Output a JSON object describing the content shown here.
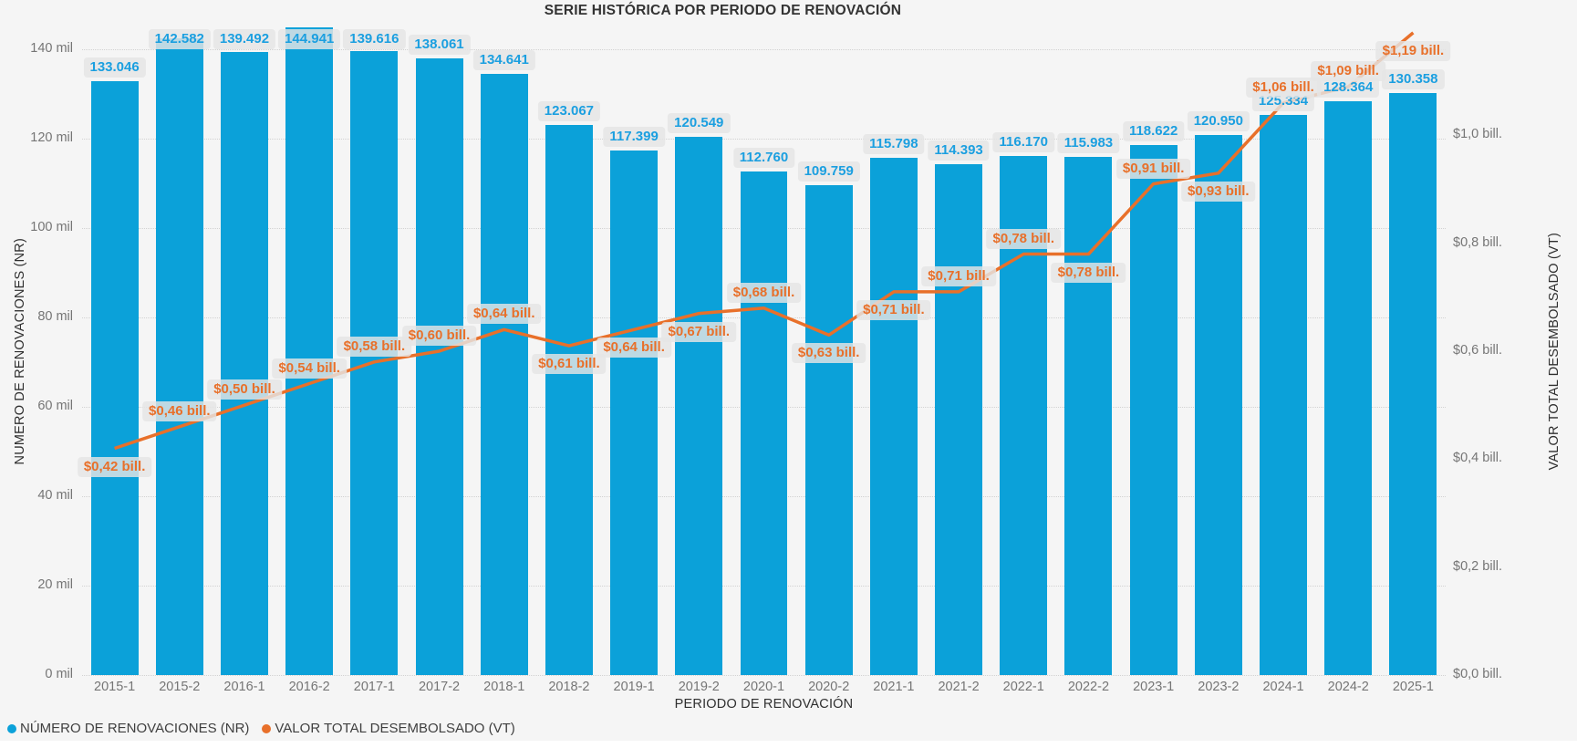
{
  "chart_data": {
    "type": "combo-bar-line",
    "title": "SERIE HISTÓRICA POR PERIODO DE RENOVACIÓN",
    "x_title": "PERIODO DE RENOVACIÓN",
    "y_left_title": "NUMERO DE RENOVACIONES (NR)",
    "y_right_title": "VALOR TOTAL DESEMBOLSADO (VT)",
    "categories": [
      "2015-1",
      "2015-2",
      "2016-1",
      "2016-2",
      "2017-1",
      "2017-2",
      "2018-1",
      "2018-2",
      "2019-1",
      "2019-2",
      "2020-1",
      "2020-2",
      "2021-1",
      "2021-2",
      "2022-1",
      "2022-2",
      "2023-1",
      "2023-2",
      "2024-1",
      "2024-2",
      "2025-1"
    ],
    "series": [
      {
        "name": "NÚMERO DE RENOVACIONES (NR)",
        "type": "bar",
        "color": "#0BA1D9",
        "values": [
          133046,
          142582,
          139492,
          144941,
          139616,
          138061,
          134641,
          123067,
          117399,
          120549,
          112760,
          109759,
          115798,
          114393,
          116170,
          115983,
          118622,
          120950,
          125334,
          128364,
          130358
        ],
        "labels": [
          "133.046",
          "142.582",
          "139.492",
          "144.941",
          "139.616",
          "138.061",
          "134.641",
          "123.067",
          "117.399",
          "120.549",
          "112.760",
          "109.759",
          "115.798",
          "114.393",
          "116.170",
          "115.983",
          "118.622",
          "120.950",
          "125.334",
          "128.364",
          "130.358"
        ]
      },
      {
        "name": "VALOR TOTAL DESEMBOLSADO (VT)",
        "type": "line",
        "color": "#E8702A",
        "values": [
          0.42,
          0.46,
          0.5,
          0.54,
          0.58,
          0.6,
          0.64,
          0.61,
          0.64,
          0.67,
          0.68,
          0.63,
          0.71,
          0.71,
          0.78,
          0.78,
          0.91,
          0.93,
          1.06,
          1.09,
          1.19
        ],
        "labels": [
          "$0,42 bill.",
          "$0,46 bill.",
          "$0,50 bill.",
          "$0,54 bill.",
          "$0,58 bill.",
          "$0,60 bill.",
          "$0,64 bill.",
          "$0,61 bill.",
          "$0,64 bill.",
          "$0,67 bill.",
          "$0,68 bill.",
          "$0,63 bill.",
          "$0,71 bill.",
          "$0,71 bill.",
          "$0,78 bill.",
          "$0,78 bill.",
          "$0,91 bill.",
          "$0,93 bill.",
          "$1,06 bill.",
          "$1,09 bill.",
          "$1,19 bill."
        ],
        "label_positions": [
          "below",
          "above",
          "above",
          "above",
          "above",
          "above",
          "above",
          "below",
          "below",
          "below",
          "above",
          "below",
          "below",
          "above",
          "above",
          "below",
          "above",
          "below",
          "above",
          "above",
          "below"
        ]
      }
    ],
    "y_left": {
      "ticks": [
        "0 mil",
        "20 mil",
        "40 mil",
        "60 mil",
        "80 mil",
        "100 mil",
        "120 mil",
        "140 mil"
      ],
      "values": [
        0,
        20000,
        40000,
        60000,
        80000,
        100000,
        120000,
        140000
      ],
      "max": 145000
    },
    "y_right": {
      "ticks": [
        "$0,0 bill.",
        "$0,2 bill.",
        "$0,4 bill.",
        "$0,6 bill.",
        "$0,8 bill.",
        "$1,0 bill."
      ],
      "values": [
        0,
        0.2,
        0.4,
        0.6,
        0.8,
        1.0
      ],
      "max": 1.2
    },
    "grid": true,
    "legend_position": "bottom-left",
    "colors": {
      "background": "#F5F5F5",
      "bar": "#0BA1D9",
      "line": "#E8702A",
      "bar_label_text": "#1B9FE0",
      "line_label_text": "#E8702A",
      "label_pill_bg": "rgba(229,229,229,0.82)",
      "tick_text": "#757575",
      "axis_title_text": "#303030",
      "gridline": "#D2D2D2"
    }
  }
}
